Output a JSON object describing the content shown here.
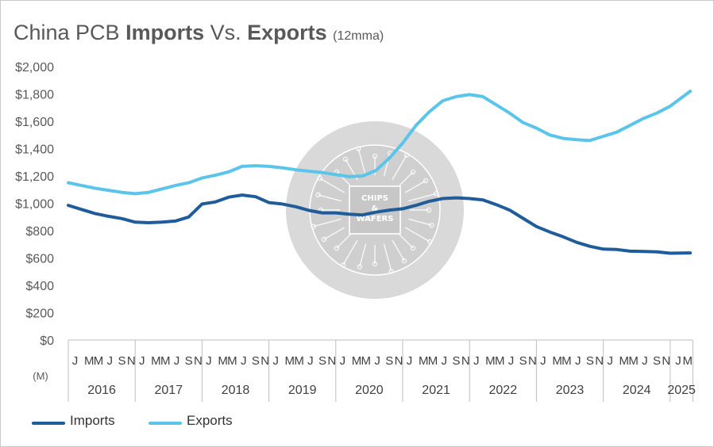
{
  "title": {
    "prefix": "China PCB ",
    "imports": "Imports",
    "vs": " Vs. ",
    "exports": "Exports",
    "suffix": "(12mma)"
  },
  "watermark": {
    "line1": "CHIPS",
    "line2": "&",
    "line3": "WAFERS"
  },
  "colors": {
    "imports": "#1f5c99",
    "exports": "#5bc4ea",
    "axis": "#bfbfbf",
    "text": "#595959"
  },
  "chart_data": {
    "type": "line",
    "title": "China PCB Imports Vs. Exports (12mma)",
    "y_unit_note": "(M)",
    "ylim": [
      0,
      2000
    ],
    "y_ticks": [
      "$0",
      "$200",
      "$400",
      "$600",
      "$800",
      "$1,000",
      "$1,200",
      "$1,400",
      "$1,600",
      "$1,800",
      "$2,000"
    ],
    "years": [
      "2016",
      "2017",
      "2018",
      "2019",
      "2020",
      "2021",
      "2022",
      "2023",
      "2024",
      "2025"
    ],
    "month_labels": [
      "J",
      "M",
      "M",
      "J",
      "S",
      "N"
    ],
    "partial_last_year_labels": [
      "J",
      "M"
    ],
    "legend": [
      "Imports",
      "Exports"
    ],
    "grid": false,
    "series": [
      {
        "name": "Imports",
        "points": [
          [
            2016.0,
            985
          ],
          [
            2016.2,
            955
          ],
          [
            2016.4,
            925
          ],
          [
            2016.6,
            905
          ],
          [
            2016.8,
            888
          ],
          [
            2017.0,
            862
          ],
          [
            2017.2,
            858
          ],
          [
            2017.4,
            862
          ],
          [
            2017.6,
            870
          ],
          [
            2017.8,
            900
          ],
          [
            2018.0,
            995
          ],
          [
            2018.2,
            1010
          ],
          [
            2018.4,
            1045
          ],
          [
            2018.6,
            1060
          ],
          [
            2018.8,
            1048
          ],
          [
            2019.0,
            1005
          ],
          [
            2019.2,
            995
          ],
          [
            2019.4,
            975
          ],
          [
            2019.6,
            948
          ],
          [
            2019.8,
            930
          ],
          [
            2020.0,
            930
          ],
          [
            2020.2,
            920
          ],
          [
            2020.4,
            915
          ],
          [
            2020.6,
            935
          ],
          [
            2020.8,
            950
          ],
          [
            2021.0,
            960
          ],
          [
            2021.2,
            985
          ],
          [
            2021.4,
            1015
          ],
          [
            2021.6,
            1035
          ],
          [
            2021.8,
            1040
          ],
          [
            2022.0,
            1035
          ],
          [
            2022.2,
            1025
          ],
          [
            2022.4,
            990
          ],
          [
            2022.6,
            950
          ],
          [
            2022.8,
            890
          ],
          [
            2023.0,
            830
          ],
          [
            2023.2,
            790
          ],
          [
            2023.4,
            755
          ],
          [
            2023.6,
            715
          ],
          [
            2023.8,
            685
          ],
          [
            2024.0,
            665
          ],
          [
            2024.2,
            662
          ],
          [
            2024.4,
            650
          ],
          [
            2024.6,
            648
          ],
          [
            2024.8,
            645
          ],
          [
            2025.0,
            635
          ],
          [
            2025.3,
            637
          ]
        ]
      },
      {
        "name": "Exports",
        "points": [
          [
            2016.0,
            1150
          ],
          [
            2016.2,
            1130
          ],
          [
            2016.4,
            1110
          ],
          [
            2016.6,
            1095
          ],
          [
            2016.8,
            1080
          ],
          [
            2017.0,
            1070
          ],
          [
            2017.2,
            1080
          ],
          [
            2017.4,
            1105
          ],
          [
            2017.6,
            1130
          ],
          [
            2017.8,
            1150
          ],
          [
            2018.0,
            1185
          ],
          [
            2018.2,
            1205
          ],
          [
            2018.4,
            1230
          ],
          [
            2018.6,
            1270
          ],
          [
            2018.8,
            1275
          ],
          [
            2019.0,
            1270
          ],
          [
            2019.2,
            1260
          ],
          [
            2019.4,
            1245
          ],
          [
            2019.6,
            1235
          ],
          [
            2019.8,
            1225
          ],
          [
            2020.0,
            1210
          ],
          [
            2020.2,
            1195
          ],
          [
            2020.4,
            1200
          ],
          [
            2020.6,
            1240
          ],
          [
            2020.8,
            1330
          ],
          [
            2021.0,
            1440
          ],
          [
            2021.2,
            1570
          ],
          [
            2021.4,
            1670
          ],
          [
            2021.6,
            1750
          ],
          [
            2021.8,
            1780
          ],
          [
            2022.0,
            1795
          ],
          [
            2022.2,
            1780
          ],
          [
            2022.4,
            1720
          ],
          [
            2022.6,
            1660
          ],
          [
            2022.8,
            1590
          ],
          [
            2023.0,
            1550
          ],
          [
            2023.2,
            1500
          ],
          [
            2023.4,
            1475
          ],
          [
            2023.6,
            1465
          ],
          [
            2023.8,
            1460
          ],
          [
            2024.0,
            1490
          ],
          [
            2024.2,
            1520
          ],
          [
            2024.4,
            1570
          ],
          [
            2024.6,
            1620
          ],
          [
            2024.8,
            1660
          ],
          [
            2025.0,
            1710
          ],
          [
            2025.3,
            1820
          ]
        ]
      }
    ]
  }
}
